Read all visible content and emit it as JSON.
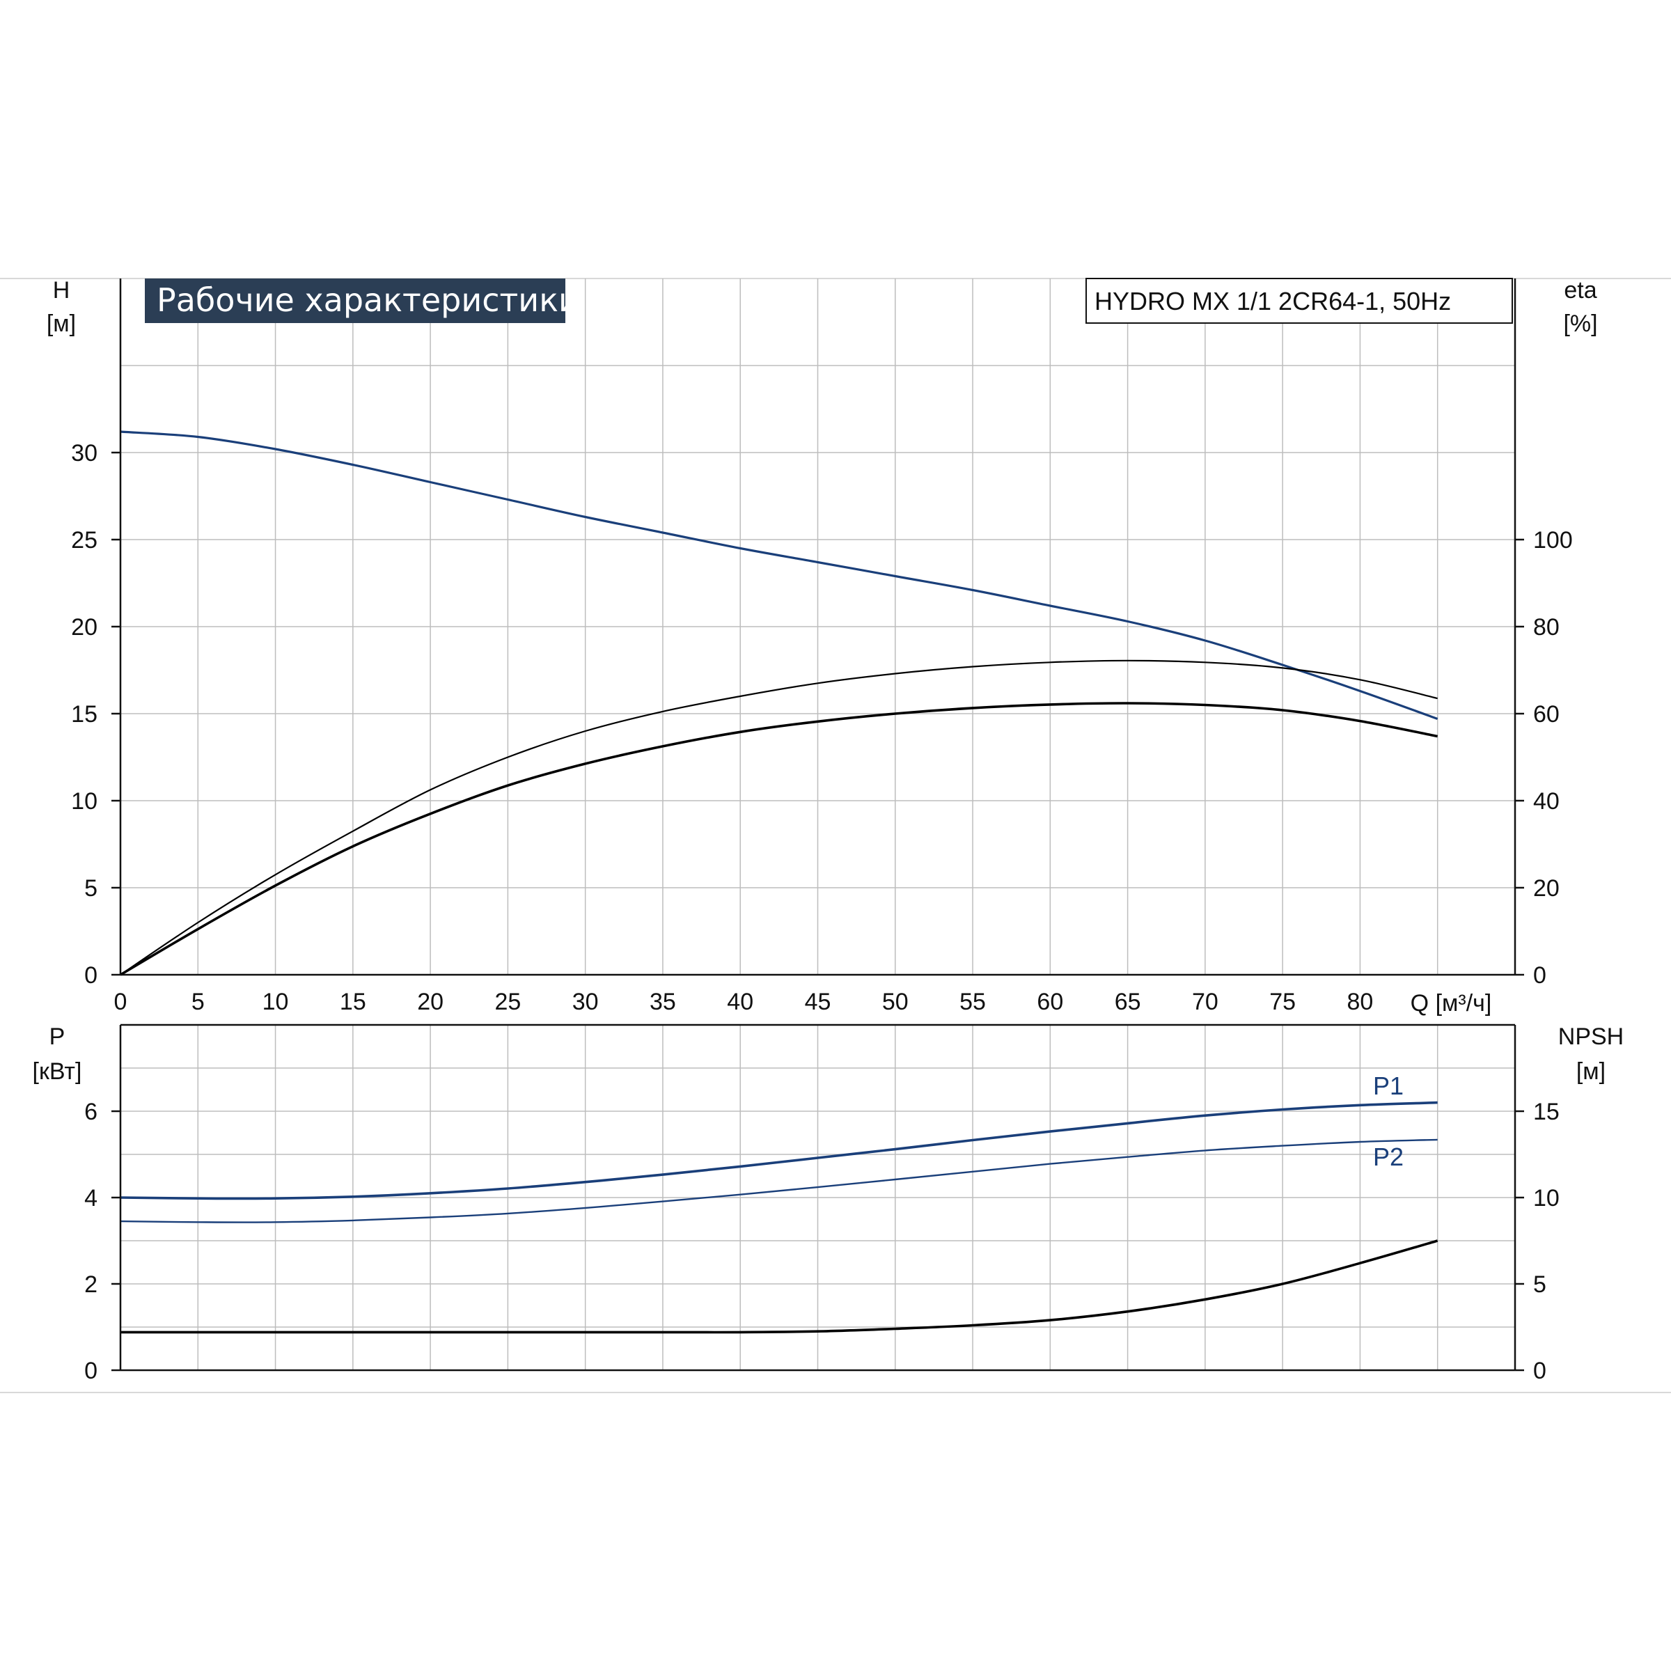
{
  "chart_data": [
    {
      "type": "line",
      "title": "Рабочие характеристики",
      "model": "HYDRO MX 1/1 2CR64-1, 50Hz",
      "x_axis": {
        "label": "Q [м³/ч]",
        "ticks": [
          "0",
          "5",
          "10",
          "15",
          "20",
          "25",
          "30",
          "35",
          "40",
          "45",
          "50",
          "55",
          "60",
          "65",
          "70",
          "75",
          "80"
        ],
        "range": [
          0,
          90
        ]
      },
      "y_left": {
        "label_top": "H",
        "label_bottom": "[м]",
        "ticks": [
          "0",
          "5",
          "10",
          "15",
          "20",
          "25",
          "30"
        ],
        "range": [
          0,
          40
        ]
      },
      "y_right": {
        "label_top": "eta",
        "label_bottom": "[%]",
        "ticks": [
          "0",
          "20",
          "40",
          "60",
          "80",
          "100"
        ],
        "range": [
          0,
          160
        ]
      },
      "grid": true,
      "series": [
        {
          "axis": "left",
          "color": "#1a3f7a",
          "x": [
            0,
            5,
            10,
            15,
            20,
            25,
            30,
            35,
            40,
            45,
            50,
            55,
            60,
            65,
            70,
            75,
            80,
            85
          ],
          "y": [
            31.2,
            30.9,
            30.2,
            29.3,
            28.3,
            27.3,
            26.3,
            25.4,
            24.5,
            23.7,
            22.9,
            22.1,
            21.2,
            20.3,
            19.2,
            17.8,
            16.3,
            14.7
          ]
        },
        {
          "axis": "right",
          "color": "#000000",
          "x": [
            0,
            5,
            10,
            15,
            20,
            25,
            30,
            35,
            40,
            45,
            50,
            55,
            60,
            65,
            70,
            75,
            80,
            85
          ],
          "y": [
            0,
            12,
            23,
            33,
            42.5,
            50,
            56,
            60.5,
            64,
            67,
            69.2,
            70.8,
            71.8,
            72.2,
            71.8,
            70.5,
            67.8,
            63.5
          ]
        },
        {
          "axis": "right",
          "color": "#000000",
          "x": [
            0,
            5,
            10,
            15,
            20,
            25,
            30,
            35,
            40,
            45,
            50,
            55,
            60,
            65,
            70,
            75,
            80,
            85
          ],
          "y": [
            0,
            10.5,
            20.5,
            29.5,
            37,
            43.5,
            48.5,
            52.5,
            55.8,
            58.2,
            60,
            61.3,
            62.1,
            62.4,
            62,
            60.8,
            58.3,
            54.8
          ]
        }
      ]
    },
    {
      "type": "line",
      "x_axis": {
        "range": [
          0,
          90
        ]
      },
      "y_left": {
        "label_top": "P",
        "label_bottom": "[кВт]",
        "ticks": [
          "0",
          "2",
          "4",
          "6"
        ],
        "range": [
          0,
          8
        ]
      },
      "y_right": {
        "label_top": "NPSH",
        "label_bottom": "[м]",
        "ticks": [
          "0",
          "5",
          "10",
          "15"
        ],
        "range": [
          0,
          20
        ]
      },
      "grid": true,
      "series": [
        {
          "name": "P1",
          "axis": "left",
          "color": "#1a3f7a",
          "x": [
            0,
            5,
            10,
            15,
            20,
            25,
            30,
            35,
            40,
            45,
            50,
            55,
            60,
            65,
            70,
            75,
            80,
            85
          ],
          "y": [
            4.0,
            3.98,
            3.98,
            4.02,
            4.1,
            4.21,
            4.36,
            4.53,
            4.72,
            4.92,
            5.12,
            5.33,
            5.53,
            5.72,
            5.9,
            6.04,
            6.14,
            6.2
          ]
        },
        {
          "name": "P2",
          "axis": "left",
          "color": "#1a3f7a",
          "x": [
            0,
            5,
            10,
            15,
            20,
            25,
            30,
            35,
            40,
            45,
            50,
            55,
            60,
            65,
            70,
            75,
            80,
            85
          ],
          "y": [
            3.45,
            3.43,
            3.43,
            3.47,
            3.54,
            3.63,
            3.76,
            3.91,
            4.07,
            4.24,
            4.42,
            4.6,
            4.78,
            4.94,
            5.09,
            5.2,
            5.29,
            5.34
          ]
        },
        {
          "axis": "right",
          "color": "#000000",
          "x": [
            0,
            5,
            10,
            15,
            20,
            25,
            30,
            35,
            40,
            45,
            50,
            55,
            60,
            65,
            70,
            75,
            80,
            85
          ],
          "y": [
            2.2,
            2.2,
            2.2,
            2.2,
            2.2,
            2.2,
            2.2,
            2.2,
            2.2,
            2.25,
            2.4,
            2.6,
            2.9,
            3.4,
            4.1,
            5.0,
            6.2,
            7.5
          ]
        }
      ]
    }
  ]
}
